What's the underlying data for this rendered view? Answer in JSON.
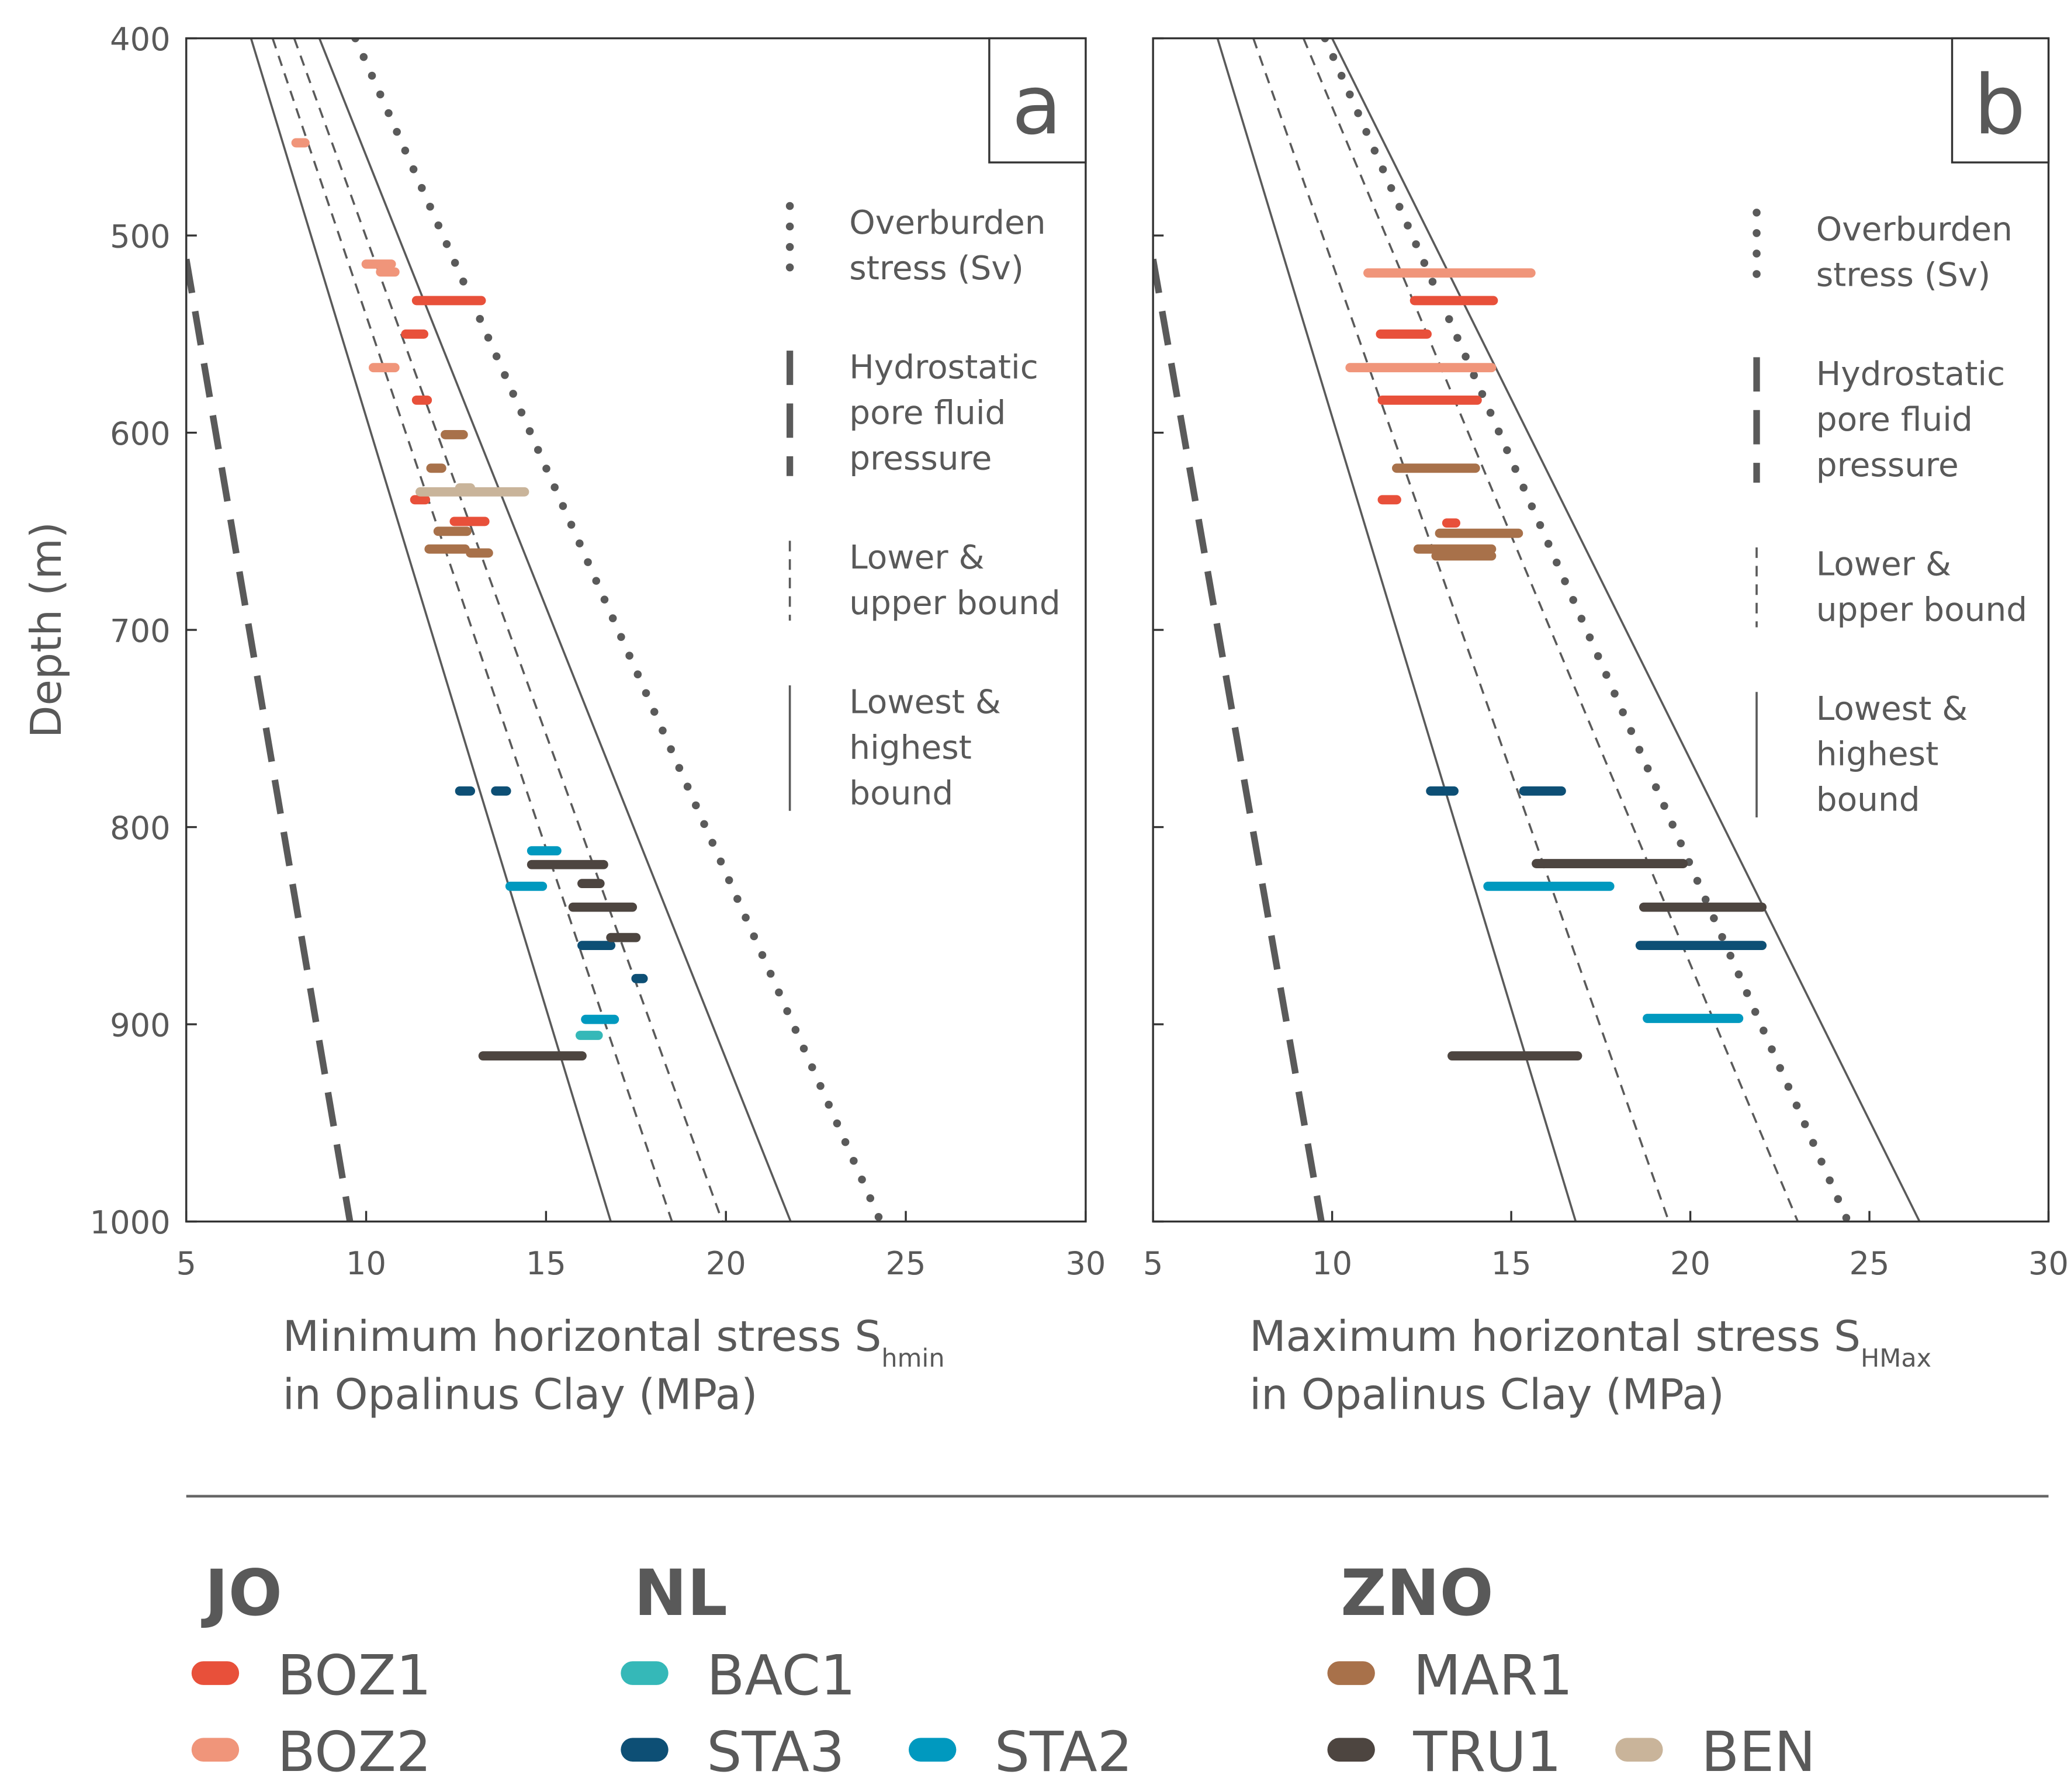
{
  "legend": {
    "groups": [
      {
        "title": "JO",
        "series": [
          "BOZ1",
          "BOZ2"
        ]
      },
      {
        "title": "NL",
        "series": [
          "BAC1",
          "STA3",
          "STA2"
        ]
      },
      {
        "title": "ZNO",
        "series": [
          "MAR1",
          "TRU1",
          "BEN"
        ]
      }
    ]
  },
  "chart_data": [
    {
      "type": "range",
      "panel_label": "a",
      "xlabel": "Minimum horizontal stress S",
      "xlabel_sub": "hmin",
      "xlabel_line2": "in Opalinus Clay (MPa)",
      "ylabel": "Depth (m)",
      "xlim": [
        5,
        30
      ],
      "ylim": [
        1000,
        400
      ],
      "xticks": [
        5,
        10,
        15,
        20,
        25,
        30
      ],
      "yticks": [
        400,
        500,
        600,
        700,
        800,
        900,
        1000
      ],
      "ytick_labels": true,
      "reference_lines": [
        {
          "name": [
            "Overburden",
            "stress (Sv)"
          ],
          "style": "dotted",
          "color": "#5a5a5a",
          "stress": [
            9.7,
            24.3
          ],
          "depth": [
            400,
            1000
          ]
        },
        {
          "name": [
            "Hydrostatic",
            "pore fluid",
            "pressure"
          ],
          "style": "dashed-thick",
          "color": "#5a5a5a",
          "stress": [
            5,
            9.55
          ],
          "depth": [
            512,
            1000
          ]
        },
        {
          "name": [
            "Lower &",
            "upper bound"
          ],
          "style": "dashed",
          "color": "#5a5a5a",
          "stress": [
            7.4,
            18.5
          ],
          "depth": [
            400,
            1000
          ]
        },
        {
          "name": [
            "Lowest &",
            "highest",
            "bound"
          ],
          "style": "solid",
          "color": "#5a5a5a",
          "stress": [
            6.8,
            16.8
          ],
          "depth": [
            400,
            1000
          ]
        },
        {
          "style": "dashed",
          "color": "#5a5a5a",
          "stress": [
            8.0,
            19.9
          ],
          "depth": [
            400,
            1000
          ]
        },
        {
          "style": "solid",
          "color": "#5a5a5a",
          "stress": [
            8.7,
            21.8
          ],
          "depth": [
            400,
            1000
          ]
        }
      ],
      "series": [
        {
          "name": "BOZ2",
          "color": "#f0957a",
          "depth": [
            453,
            514.5,
            518.5,
            567
          ],
          "low": [
            8.05,
            10.0,
            10.4,
            10.2
          ],
          "high": [
            8.3,
            10.7,
            10.8,
            10.8
          ]
        },
        {
          "name": "BOZ1",
          "color": "#e8503a",
          "depth": [
            533,
            550,
            583.5,
            634,
            645
          ],
          "low": [
            11.4,
            11.1,
            11.4,
            11.35,
            12.45
          ],
          "high": [
            13.2,
            11.6,
            11.7,
            11.65,
            13.3
          ]
        },
        {
          "name": "MAR1",
          "color": "#a8714a",
          "depth": [
            601,
            618,
            650,
            659,
            661
          ],
          "low": [
            12.2,
            11.8,
            12.0,
            11.75,
            12.9
          ],
          "high": [
            12.7,
            12.1,
            12.8,
            12.75,
            13.4
          ]
        },
        {
          "name": "BEN",
          "color": "#c9b49a",
          "depth": [
            628,
            630
          ],
          "low": [
            12.6,
            11.5
          ],
          "high": [
            12.9,
            14.4
          ]
        },
        {
          "name": "BAC1",
          "color": "#35b8b8",
          "depth": [
            905.6
          ],
          "low": [
            15.95
          ],
          "high": [
            16.45
          ]
        },
        {
          "name": "STA3",
          "color": "#0d4f75",
          "depth": [
            781.7,
            781.7,
            860,
            876.8
          ],
          "low": [
            12.6,
            13.6,
            16.0,
            17.5
          ],
          "high": [
            12.9,
            13.9,
            16.8,
            17.7
          ]
        },
        {
          "name": "STA2",
          "color": "#0099bf",
          "depth": [
            812,
            830,
            897.5
          ],
          "low": [
            14.6,
            14.0,
            16.1
          ],
          "high": [
            15.3,
            14.9,
            16.9
          ]
        },
        {
          "name": "TRU1",
          "color": "#4d4540",
          "depth": [
            819,
            828.6,
            840.6,
            856,
            916
          ],
          "low": [
            14.6,
            16.0,
            15.75,
            16.8,
            13.25
          ],
          "high": [
            16.6,
            16.5,
            17.4,
            17.5,
            16.0
          ]
        }
      ]
    },
    {
      "type": "range",
      "panel_label": "b",
      "xlabel": "Maximum horizontal stress S",
      "xlabel_sub": "HMax",
      "xlabel_line2": "in Opalinus Clay (MPa)",
      "xlim": [
        5,
        30
      ],
      "ylim": [
        1000,
        400
      ],
      "xticks": [
        5,
        10,
        15,
        20,
        25,
        30
      ],
      "yticks": [
        400,
        500,
        600,
        700,
        800,
        900,
        1000
      ],
      "ytick_labels": false,
      "reference_lines": [
        {
          "name": [
            "Overburden",
            "stress (Sv)"
          ],
          "style": "dotted",
          "color": "#5a5a5a",
          "stress": [
            9.8,
            24.4
          ],
          "depth": [
            400,
            1000
          ]
        },
        {
          "name": [
            "Hydrostatic",
            "pore fluid",
            "pressure"
          ],
          "style": "dashed-thick",
          "color": "#5a5a5a",
          "stress": [
            5,
            9.7
          ],
          "depth": [
            512,
            1000
          ]
        },
        {
          "name": [
            "Lower &",
            "upper bound"
          ],
          "style": "dashed",
          "color": "#5a5a5a",
          "stress": [
            7.8,
            19.4
          ],
          "depth": [
            400,
            1000
          ]
        },
        {
          "name": [
            "Lowest &",
            "highest",
            "bound"
          ],
          "style": "solid",
          "color": "#5a5a5a",
          "stress": [
            6.8,
            16.8
          ],
          "depth": [
            400,
            1000
          ]
        },
        {
          "style": "dashed",
          "color": "#5a5a5a",
          "stress": [
            9.2,
            23.0
          ],
          "depth": [
            400,
            1000
          ]
        },
        {
          "style": "solid",
          "color": "#5a5a5a",
          "stress": [
            10.0,
            26.4
          ],
          "depth": [
            400,
            1000
          ]
        }
      ],
      "series": [
        {
          "name": "BOZ2",
          "color": "#f0957a",
          "depth": [
            519,
            567
          ],
          "low": [
            11.0,
            10.5
          ],
          "high": [
            15.55,
            14.45
          ]
        },
        {
          "name": "BOZ1",
          "color": "#e8503a",
          "depth": [
            533,
            550,
            583.5,
            634,
            645.8
          ],
          "low": [
            12.3,
            11.35,
            11.4,
            11.4,
            13.2
          ],
          "high": [
            14.5,
            12.65,
            14.05,
            11.8,
            13.45
          ]
        },
        {
          "name": "MAR1",
          "color": "#a8714a",
          "depth": [
            618,
            651,
            659,
            662.5
          ],
          "low": [
            11.8,
            13.0,
            12.4,
            12.9
          ],
          "high": [
            14.0,
            15.2,
            14.45,
            14.45
          ]
        },
        {
          "name": "STA3",
          "color": "#0d4f75",
          "depth": [
            781.7,
            781.7,
            860
          ],
          "low": [
            12.75,
            15.35,
            18.6
          ],
          "high": [
            13.4,
            16.4,
            22.0
          ]
        },
        {
          "name": "STA2",
          "color": "#0099bf",
          "depth": [
            830,
            897
          ],
          "low": [
            14.35,
            18.8
          ],
          "high": [
            17.75,
            21.35
          ]
        },
        {
          "name": "TRU1",
          "color": "#4d4540",
          "depth": [
            818.5,
            840.6,
            916
          ],
          "low": [
            15.7,
            18.7,
            13.35
          ],
          "high": [
            19.8,
            22.0,
            16.85
          ]
        }
      ]
    }
  ]
}
